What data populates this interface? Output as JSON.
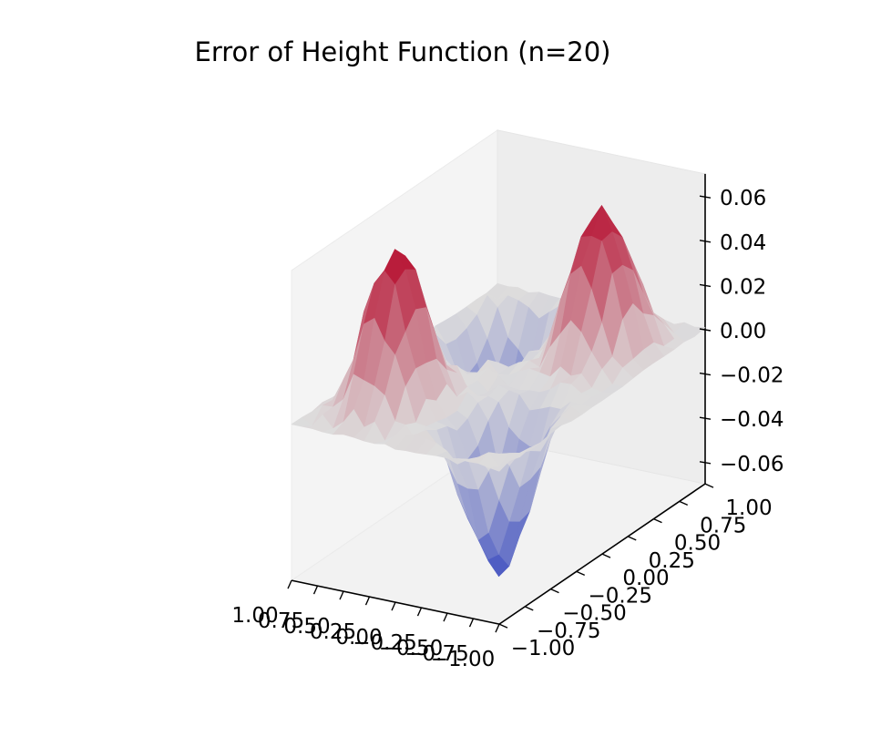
{
  "chart_data": {
    "type": "surface3d",
    "title": "Error of Height Function (n=20)",
    "colormap": "coolwarm",
    "colormap_stops": [
      "#3b4cc0",
      "#dddcdc",
      "#b40426"
    ],
    "x": {
      "range": [
        -1.0,
        1.0
      ],
      "ticks": [
        -1.0,
        -0.75,
        -0.5,
        -0.25,
        0.0,
        0.25,
        0.5,
        0.75,
        1.0
      ],
      "tick_labels": [
        "−1.00",
        "−0.75",
        "−0.50",
        "−0.25",
        "0.00",
        "0.25",
        "0.50",
        "0.75",
        "1.00"
      ]
    },
    "y": {
      "range": [
        -1.0,
        1.0
      ],
      "ticks": [
        -1.0,
        -0.75,
        -0.5,
        -0.25,
        0.0,
        0.25,
        0.5,
        0.75,
        1.0
      ],
      "tick_labels": [
        "−1.00",
        "−0.75",
        "−0.50",
        "−0.25",
        "0.00",
        "0.25",
        "0.50",
        "0.75",
        "1.00"
      ]
    },
    "z": {
      "range": [
        -0.07,
        0.07
      ],
      "ticks": [
        -0.06,
        -0.04,
        -0.02,
        0.0,
        0.02,
        0.04,
        0.06
      ],
      "tick_labels": [
        "−0.06",
        "−0.04",
        "−0.02",
        "0.00",
        "0.02",
        "0.04",
        "0.06"
      ]
    },
    "grid": false,
    "surface": {
      "grid_n": 21,
      "bumps": [
        {
          "x": -0.5,
          "y": 0.5,
          "amplitude": 0.064
        },
        {
          "x": 0.5,
          "y": -0.5,
          "amplitude": 0.066
        },
        {
          "x": -0.5,
          "y": -0.5,
          "amplitude": -0.066
        },
        {
          "x": 0.5,
          "y": 0.5,
          "amplitude": -0.064
        }
      ],
      "noise_amplitude": 0.004
    }
  }
}
